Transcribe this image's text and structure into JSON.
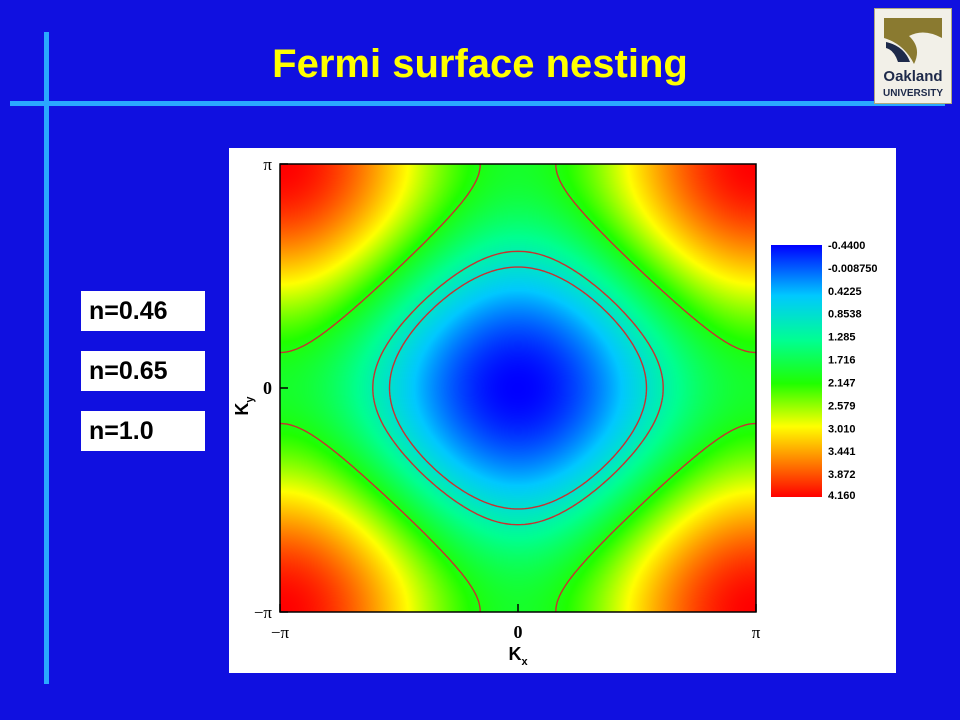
{
  "slide": {
    "title": "Fermi surface nesting",
    "logo_text": [
      "Oakland",
      "UNIVERSITY"
    ],
    "labels": [
      "n=0.46",
      "n=0.65",
      "n=1.0"
    ]
  },
  "colors": {
    "background": "#1010e0",
    "rule": "#2aa8ff",
    "title": "#ffff00",
    "contour": "#c83030"
  },
  "chart_data": {
    "type": "heatmap",
    "title": "",
    "xlabel": "K",
    "xlabel_sub": "x",
    "ylabel": "K",
    "ylabel_sub": "y",
    "xlim": [
      -3.1416,
      3.1416
    ],
    "ylim": [
      -3.1416,
      3.1416
    ],
    "xticks": [
      {
        "value": -3.1416,
        "label": "−π"
      },
      {
        "value": 0,
        "label": "0"
      },
      {
        "value": 3.1416,
        "label": "π"
      }
    ],
    "yticks": [
      {
        "value": -3.1416,
        "label": "−π"
      },
      {
        "value": 0,
        "label": "0"
      },
      {
        "value": 3.1416,
        "label": "π"
      }
    ],
    "colorbar": {
      "levels": [
        "-0.4400",
        "-0.008750",
        "0.4225",
        "0.8538",
        "1.285",
        "1.716",
        "2.147",
        "2.579",
        "3.010",
        "3.441",
        "3.872",
        "4.160"
      ],
      "range": [
        -0.44,
        4.16
      ]
    },
    "contours": [
      {
        "label": "n=0.46",
        "level": 0.8538
      },
      {
        "label": "n=0.65",
        "level": 1.1
      },
      {
        "label": "n=1.0",
        "level": 2.0
      }
    ]
  }
}
